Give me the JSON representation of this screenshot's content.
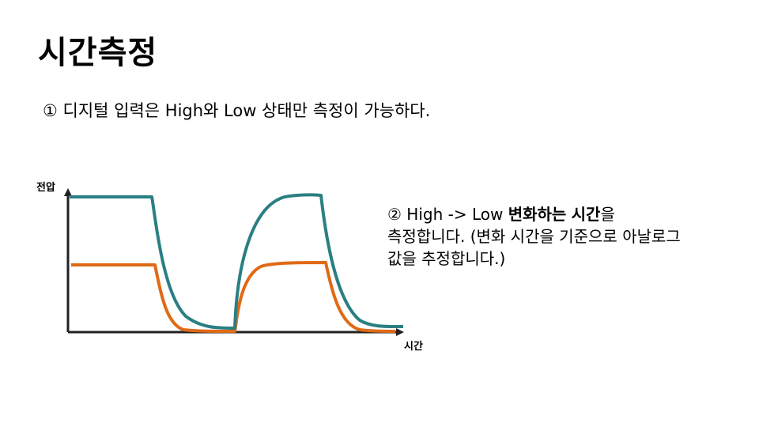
{
  "title": "시간측정",
  "point1": "① 디지털 입력은 High와 Low 상태만 측정이 가능하다.",
  "point2": {
    "line1_a": "② High -> Low ",
    "line1_bold1": "변화하는",
    "line1_space": " ",
    "line1_bold2": "시간",
    "line1_b": "을",
    "line2": "측정합니다. (변화 시간을 기준으로 아날로그",
    "line3": "값을 추정합니다.)"
  },
  "graph": {
    "y_axis_label": "전압",
    "x_axis_label": "시간",
    "colors": {
      "axis": "#222222",
      "teal_signal": "#2a7f83",
      "orange_signal": "#e06a16"
    }
  }
}
